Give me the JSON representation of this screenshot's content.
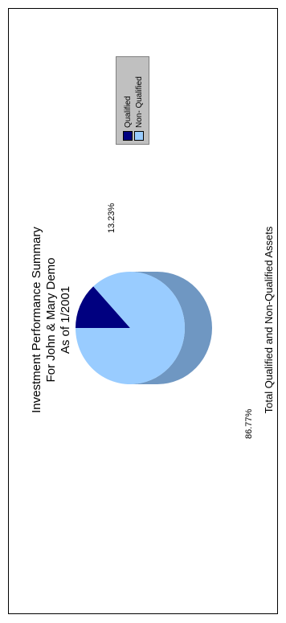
{
  "chart_data": {
    "type": "pie",
    "title": [
      "Investment Performance Summary",
      "For John & Mary Demo",
      "As of 1/2001"
    ],
    "subtitle": "Total Qualified and Non-Qualified Assets",
    "slices": [
      {
        "name": "Qualified",
        "value": 13.23,
        "label": "13.23%",
        "color": "#000080"
      },
      {
        "name": "Non- Qualified",
        "value": 86.77,
        "label": "86.77%",
        "color": "#99ccff"
      }
    ],
    "side_color": "#6f97c2",
    "legend_placement": "right",
    "legend_background": "#c0c0c0"
  }
}
